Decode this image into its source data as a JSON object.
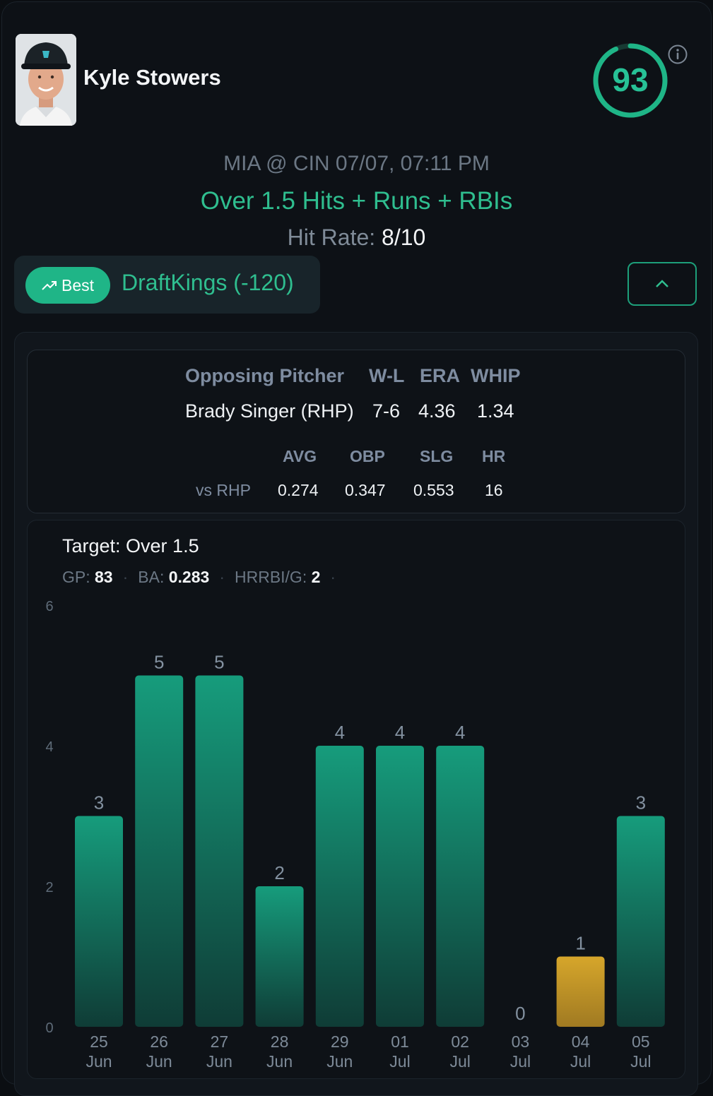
{
  "player": {
    "name": "Kyle Stowers",
    "score": "93",
    "score_fraction": 0.93
  },
  "game": {
    "matchup": "MIA @ CIN 07/07, 07:11 PM",
    "prop": "Over 1.5 Hits + Runs + RBIs",
    "hit_rate_label": "Hit Rate:",
    "hit_rate_value": "8/10"
  },
  "book": {
    "badge_label": "Best",
    "label": "DraftKings (-120)"
  },
  "pitcher": {
    "headers": [
      "Opposing Pitcher",
      "W-L",
      "ERA",
      "WHIP"
    ],
    "name": "Brady Singer (RHP)",
    "wl": "7-6",
    "era": "4.36",
    "whip": "1.34",
    "split_headers": [
      "AVG",
      "OBP",
      "SLG",
      "HR"
    ],
    "split_label": "vs RHP",
    "split_values": [
      "0.274",
      "0.347",
      "0.553",
      "16"
    ]
  },
  "summary": {
    "target": "Target: Over 1.5",
    "gp_label": "GP:",
    "gp_value": "83",
    "ba_label": "BA:",
    "ba_value": "0.283",
    "hrrbi_label": "HRRBI/G:",
    "hrrbi_value": "2"
  },
  "colors": {
    "accent": "#1fb587",
    "hit": "#169a7b",
    "miss": "#d4a52c"
  },
  "chart_data": {
    "type": "bar",
    "categories": [
      "25 Jun",
      "26 Jun",
      "27 Jun",
      "28 Jun",
      "29 Jun",
      "01 Jul",
      "02 Jul",
      "03 Jul",
      "04 Jul",
      "05 Jul"
    ],
    "values": [
      3,
      5,
      5,
      2,
      4,
      4,
      4,
      0,
      1,
      3
    ],
    "yticks": [
      0,
      2,
      4,
      6
    ],
    "ylim": [
      0,
      6
    ],
    "threshold": 1.5,
    "title": "",
    "xlabel": "",
    "ylabel": ""
  }
}
